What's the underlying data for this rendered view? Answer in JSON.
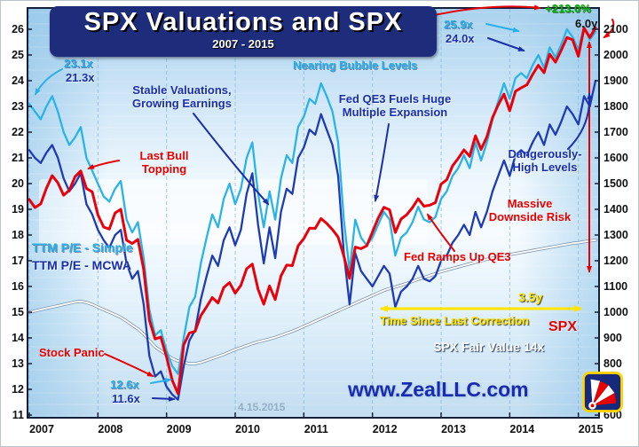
{
  "title": {
    "main": "SPX Valuations and SPX",
    "subtitle": "2007 - 2015"
  },
  "footer": {
    "site": "www.ZealLLC.com",
    "date_mark": "4.15.2015"
  },
  "annotations": {
    "gain": "+213.0%",
    "duration": "6.0y",
    "pe_simple_current": "25.9x",
    "pe_mcwa_current": "24.0x",
    "pe_simple_start": "23.1x",
    "pe_mcwa_start": "21.3x",
    "nearing": "Nearing Bubble Levels",
    "stable_1": "Stable Valuations,",
    "stable_2": "Growing Earnings",
    "qe3_1": "Fed QE3 Fuels Huge",
    "qe3_2": "Multiple Expansion",
    "last_bull_1": "Last Bull",
    "last_bull_2": "Topping",
    "dangerous_1": "Dangerously-",
    "dangerous_2": "High Levels",
    "downside_1": "Massive",
    "downside_2": "Downside Risk",
    "legend_simple": "TTM P/E - Simple",
    "legend_mcwa": "TTM P/E - MCWA",
    "fed_ramps": "Fed Ramps Up QE3",
    "correction_time": "3.5y",
    "correction_label": "Time Since Last Correction",
    "stock_panic": "Stock Panic",
    "pe_simple_low": "12.6x",
    "pe_mcwa_low": "11.6x",
    "spx_label": "SPX",
    "fair_value_label": "SPX Fair Value 14x"
  },
  "colors": {
    "simple": "#2bb3e8",
    "mcwa": "#1f3bb3",
    "spx": "#e8000a",
    "fair": "#ffffff",
    "grid": "#7fb0d8",
    "axis_text": "#101010",
    "title_bg": "#1e2c7c"
  },
  "chart_data": {
    "type": "line",
    "title": "SPX Valuations and SPX",
    "subtitle": "2007 - 2015",
    "x_unit": "monthly",
    "x_years": [
      2007,
      2008,
      2009,
      2010,
      2011,
      2012,
      2013,
      2014,
      2015
    ],
    "left_axis": {
      "label": "TTM P/E",
      "range": [
        11,
        26
      ],
      "ticks": [
        26,
        25,
        24,
        23,
        22,
        21,
        20,
        19,
        18,
        17,
        16,
        15,
        14,
        13,
        12,
        11
      ]
    },
    "right_axis": {
      "label": "SPX",
      "range": [
        600,
        2100
      ],
      "ticks": [
        2100,
        2000,
        1900,
        1800,
        1700,
        1600,
        1500,
        1400,
        1300,
        1200,
        1100,
        1000,
        900,
        800,
        700,
        600
      ]
    },
    "grid": "vertical-years",
    "legend_position": "mid-left",
    "draw_order": [
      3,
      0,
      1,
      2
    ],
    "series": [
      {
        "name": "TTM P/E - Simple",
        "axis": "left",
        "color": "#2bb3e8",
        "width": 2.3,
        "values": [
          23.1,
          22.8,
          22.5,
          23.0,
          23.4,
          22.8,
          22.0,
          21.5,
          21.8,
          22.2,
          21.0,
          20.5,
          20.0,
          19.5,
          19.3,
          19.8,
          20.1,
          18.6,
          18.1,
          18.5,
          17.1,
          15.1,
          14.1,
          14.3,
          13.5,
          12.9,
          12.6,
          14.0,
          15.2,
          15.6,
          16.9,
          17.9,
          18.8,
          18.3,
          19.4,
          20.0,
          19.2,
          19.8,
          21.0,
          21.6,
          19.6,
          18.3,
          19.7,
          18.6,
          20.2,
          21.1,
          20.8,
          22.2,
          22.6,
          23.3,
          23.1,
          23.9,
          23.4,
          22.8,
          21.6,
          18.6,
          16.6,
          18.6,
          17.9,
          17.6,
          17.9,
          18.4,
          18.9,
          18.6,
          17.2,
          17.9,
          18.1,
          18.5,
          19.1,
          18.6,
          18.5,
          18.7,
          19.4,
          19.7,
          20.3,
          20.6,
          21.1,
          20.6,
          21.6,
          20.9,
          21.6,
          22.5,
          23.2,
          23.9,
          23.3,
          24.1,
          24.3,
          24.1,
          24.6,
          25.0,
          24.5,
          25.3,
          24.9,
          25.4,
          26.0,
          25.7,
          25.2,
          26.1,
          25.6,
          25.9
        ]
      },
      {
        "name": "TTM P/E - MCWA",
        "axis": "left",
        "color": "#1f3bb3",
        "width": 2.3,
        "values": [
          21.3,
          21.0,
          20.8,
          21.2,
          21.5,
          21.0,
          20.2,
          19.7,
          20.0,
          20.4,
          19.2,
          18.8,
          18.2,
          17.8,
          17.5,
          18.0,
          18.2,
          16.9,
          16.3,
          16.6,
          15.3,
          13.3,
          12.5,
          12.7,
          12.1,
          11.8,
          11.6,
          12.9,
          13.9,
          14.3,
          15.5,
          16.4,
          17.2,
          16.8,
          17.8,
          18.3,
          17.6,
          18.2,
          19.6,
          20.4,
          18.4,
          16.9,
          18.3,
          17.1,
          18.9,
          19.8,
          19.6,
          21.0,
          21.4,
          22.1,
          21.9,
          22.7,
          22.1,
          21.5,
          20.3,
          17.3,
          15.3,
          17.3,
          16.6,
          16.3,
          16.0,
          16.4,
          16.8,
          16.5,
          15.2,
          15.8,
          16.0,
          16.3,
          16.8,
          16.3,
          16.2,
          16.4,
          17.0,
          17.2,
          17.7,
          18.0,
          18.4,
          18.0,
          18.9,
          18.3,
          18.9,
          19.7,
          20.3,
          20.9,
          20.3,
          21.1,
          21.3,
          21.1,
          21.6,
          22.0,
          21.5,
          22.3,
          21.9,
          22.4,
          23.0,
          22.7,
          22.3,
          23.4,
          23.0,
          24.0
        ]
      },
      {
        "name": "SPX",
        "axis": "right",
        "color": "#e8000a",
        "width": 3,
        "values": [
          1438,
          1407,
          1421,
          1482,
          1531,
          1503,
          1455,
          1474,
          1527,
          1549,
          1481,
          1468,
          1379,
          1331,
          1323,
          1386,
          1400,
          1280,
          1267,
          1283,
          1166,
          969,
          896,
          903,
          826,
          735,
          683,
          873,
          919,
          926,
          987,
          1021,
          1057,
          1036,
          1096,
          1115,
          1074,
          1104,
          1169,
          1187,
          1089,
          1031,
          1102,
          1049,
          1141,
          1183,
          1181,
          1258,
          1286,
          1327,
          1326,
          1364,
          1345,
          1321,
          1292,
          1219,
          1131,
          1253,
          1247,
          1258,
          1312,
          1366,
          1408,
          1398,
          1310,
          1362,
          1379,
          1407,
          1441,
          1412,
          1416,
          1426,
          1498,
          1515,
          1569,
          1598,
          1631,
          1606,
          1686,
          1633,
          1682,
          1757,
          1806,
          1848,
          1783,
          1859,
          1872,
          1884,
          1924,
          1960,
          1931,
          2003,
          1972,
          2018,
          2068,
          2059,
          1995,
          2105,
          2068,
          2106
        ]
      },
      {
        "name": "SPX Fair Value 14x",
        "axis": "right",
        "color": "#ffffff",
        "width": 1.9,
        "outline": "#7a93ad",
        "values": [
          1000,
          1005,
          1010,
          1015,
          1020,
          1025,
          1030,
          1035,
          1040,
          1042,
          1038,
          1030,
          1020,
          1010,
          1000,
          990,
          980,
          965,
          950,
          935,
          915,
          890,
          865,
          850,
          835,
          820,
          810,
          805,
          800,
          800,
          805,
          812,
          820,
          828,
          836,
          845,
          855,
          862,
          870,
          878,
          885,
          890,
          896,
          902,
          910,
          918,
          926,
          935,
          945,
          955,
          965,
          975,
          985,
          995,
          1005,
          1015,
          1025,
          1035,
          1045,
          1055,
          1065,
          1075,
          1085,
          1092,
          1098,
          1105,
          1112,
          1120,
          1128,
          1135,
          1142,
          1150,
          1158,
          1164,
          1170,
          1176,
          1182,
          1188,
          1194,
          1200,
          1206,
          1210,
          1215,
          1220,
          1224,
          1228,
          1232,
          1236,
          1240,
          1244,
          1248,
          1252,
          1256,
          1260,
          1264,
          1268,
          1270,
          1274,
          1277,
          1280
        ]
      }
    ]
  }
}
